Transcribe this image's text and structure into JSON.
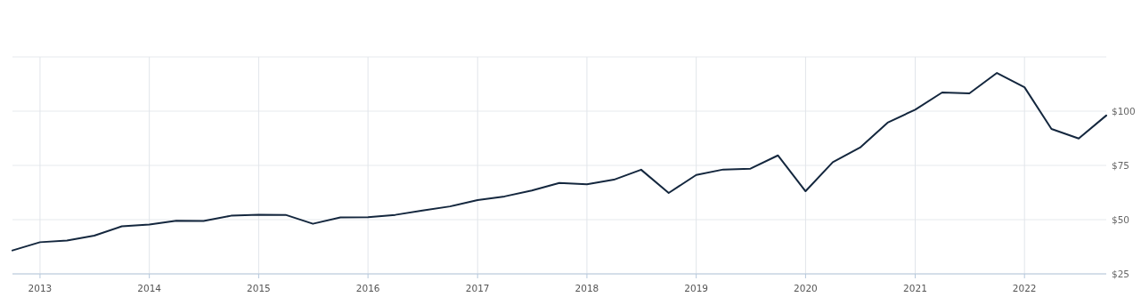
{
  "chart_data": {
    "type": "line",
    "x": [
      "2012-10",
      "2013-01",
      "2013-04",
      "2013-07",
      "2013-10",
      "2014-01",
      "2014-04",
      "2014-07",
      "2014-10",
      "2015-01",
      "2015-04",
      "2015-07",
      "2015-10",
      "2016-01",
      "2016-04",
      "2016-07",
      "2016-10",
      "2017-01",
      "2017-04",
      "2017-07",
      "2017-10",
      "2018-01",
      "2018-04",
      "2018-07",
      "2018-10",
      "2019-01",
      "2019-04",
      "2019-07",
      "2019-10",
      "2020-01",
      "2020-04",
      "2020-07",
      "2020-10",
      "2021-01",
      "2021-04",
      "2021-07",
      "2021-10",
      "2022-01",
      "2022-04",
      "2022-07",
      "2022-10"
    ],
    "series": [
      {
        "color": "#14273e",
        "values": [
          35.8,
          39.6,
          40.4,
          42.6,
          46.9,
          47.7,
          49.5,
          49.4,
          51.8,
          52.3,
          52.2,
          48.1,
          51.0,
          51.1,
          52.2,
          54.2,
          56.1,
          59.0,
          60.7,
          63.4,
          66.9,
          66.3,
          68.4,
          73.0,
          62.3,
          70.6,
          73.1,
          73.5,
          79.6,
          63.1,
          76.5,
          83.2,
          94.7,
          100.7,
          108.6,
          108.2,
          117.6,
          111.0,
          91.8,
          87.4,
          98.0
        ]
      }
    ],
    "xlim": [
      "2012-10",
      "2022-10"
    ],
    "xticks": [
      "2013",
      "2014",
      "2015",
      "2016",
      "2017",
      "2018",
      "2019",
      "2020",
      "2021",
      "2022"
    ],
    "ylim": [
      25,
      125
    ],
    "yticks": [
      {
        "value": 25,
        "label": "$25"
      },
      {
        "value": 50,
        "label": "$50"
      },
      {
        "value": 75,
        "label": "$75"
      },
      {
        "value": 100,
        "label": "$100"
      },
      {
        "value": 125,
        "label": null
      }
    ],
    "grid": true,
    "marker": "none",
    "line_style": "solid"
  }
}
